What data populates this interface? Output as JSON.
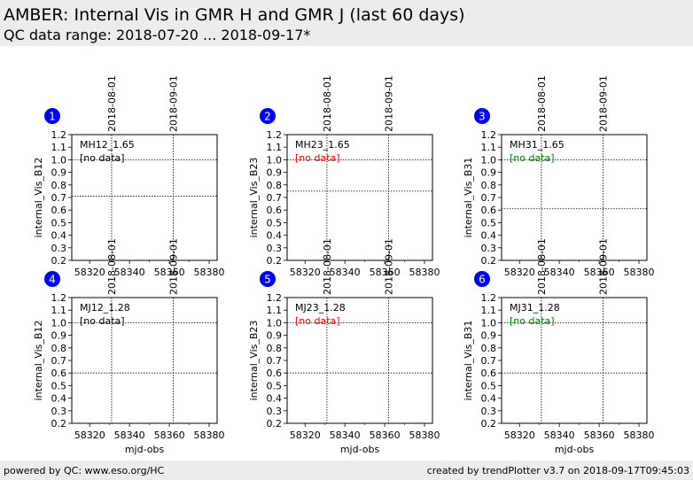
{
  "header": {
    "title": "AMBER: Internal Vis in GMR H and GMR J (last 60 days)",
    "subtitle": "QC data range: 2018-07-20 ... 2018-09-17*"
  },
  "footer": {
    "left": "powered by QC: www.eso.org/HC",
    "right": "created by trendPlotter v3.7 on 2018-09-17T09:45:03"
  },
  "colors": {
    "badge": "#0000ff",
    "no_data_black": "#000000",
    "no_data_red": "#ff0000",
    "no_data_green": "#008000"
  },
  "chart_data": [
    {
      "type": "scatter",
      "badge": "1",
      "label": "MH12_1.65",
      "status": "[no data]",
      "status_color": "#000000",
      "ylabel": "internal_Vis_B12",
      "xlabel": "",
      "xlim": [
        58311,
        58384
      ],
      "ylim": [
        0.2,
        1.2
      ],
      "xticks": [
        58320,
        58340,
        58360,
        58380
      ],
      "yticks": [
        0.2,
        0.3,
        0.4,
        0.5,
        0.6,
        0.7,
        0.8,
        0.9,
        1.0,
        1.1,
        1.2
      ],
      "date_marks": [
        {
          "x": 58331,
          "label": "2018-08-01"
        },
        {
          "x": 58362,
          "label": "2018-09-01"
        }
      ],
      "hlines": [
        1.0,
        0.71
      ],
      "series": []
    },
    {
      "type": "scatter",
      "badge": "2",
      "label": "MH23_1.65",
      "status": "[no data]",
      "status_color": "#ff0000",
      "ylabel": "internal_Vis_B23",
      "xlabel": "",
      "xlim": [
        58311,
        58384
      ],
      "ylim": [
        0.2,
        1.2
      ],
      "xticks": [
        58320,
        58340,
        58360,
        58380
      ],
      "yticks": [
        0.2,
        0.3,
        0.4,
        0.5,
        0.6,
        0.7,
        0.8,
        0.9,
        1.0,
        1.1,
        1.2
      ],
      "date_marks": [
        {
          "x": 58331,
          "label": "2018-08-01"
        },
        {
          "x": 58362,
          "label": "2018-09-01"
        }
      ],
      "hlines": [
        1.0,
        0.75
      ],
      "series": []
    },
    {
      "type": "scatter",
      "badge": "3",
      "label": "MH31_1.65",
      "status": "[no data]",
      "status_color": "#008000",
      "ylabel": "internal_Vis_B31",
      "xlabel": "",
      "xlim": [
        58311,
        58384
      ],
      "ylim": [
        0.2,
        1.2
      ],
      "xticks": [
        58320,
        58340,
        58360,
        58380
      ],
      "yticks": [
        0.2,
        0.3,
        0.4,
        0.5,
        0.6,
        0.7,
        0.8,
        0.9,
        1.0,
        1.1,
        1.2
      ],
      "date_marks": [
        {
          "x": 58331,
          "label": "2018-08-01"
        },
        {
          "x": 58362,
          "label": "2018-09-01"
        }
      ],
      "hlines": [
        1.0,
        0.61
      ],
      "series": []
    },
    {
      "type": "scatter",
      "badge": "4",
      "label": "MJ12_1.28",
      "status": "[no data]",
      "status_color": "#000000",
      "ylabel": "internal_Vis_B12",
      "xlabel": "mjd-obs",
      "xlim": [
        58311,
        58384
      ],
      "ylim": [
        0.2,
        1.2
      ],
      "xticks": [
        58320,
        58340,
        58360,
        58380
      ],
      "yticks": [
        0.2,
        0.3,
        0.4,
        0.5,
        0.6,
        0.7,
        0.8,
        0.9,
        1.0,
        1.1,
        1.2
      ],
      "date_marks": [
        {
          "x": 58331,
          "label": "2018-08-01"
        },
        {
          "x": 58362,
          "label": "2018-09-01"
        }
      ],
      "hlines": [
        1.0,
        0.6
      ],
      "series": []
    },
    {
      "type": "scatter",
      "badge": "5",
      "label": "MJ23_1.28",
      "status": "[no data]",
      "status_color": "#ff0000",
      "ylabel": "internal_Vis_B23",
      "xlabel": "mjd-obs",
      "xlim": [
        58311,
        58384
      ],
      "ylim": [
        0.2,
        1.2
      ],
      "xticks": [
        58320,
        58340,
        58360,
        58380
      ],
      "yticks": [
        0.2,
        0.3,
        0.4,
        0.5,
        0.6,
        0.7,
        0.8,
        0.9,
        1.0,
        1.1,
        1.2
      ],
      "date_marks": [
        {
          "x": 58331,
          "label": "2018-08-01"
        },
        {
          "x": 58362,
          "label": "2018-09-01"
        }
      ],
      "hlines": [
        1.0,
        0.6
      ],
      "series": []
    },
    {
      "type": "scatter",
      "badge": "6",
      "label": "MJ31_1.28",
      "status": "[no data]",
      "status_color": "#008000",
      "ylabel": "internal_Vis_B31",
      "xlabel": "mjd-obs",
      "xlim": [
        58311,
        58384
      ],
      "ylim": [
        0.2,
        1.2
      ],
      "xticks": [
        58320,
        58340,
        58360,
        58380
      ],
      "yticks": [
        0.2,
        0.3,
        0.4,
        0.5,
        0.6,
        0.7,
        0.8,
        0.9,
        1.0,
        1.1,
        1.2
      ],
      "date_marks": [
        {
          "x": 58331,
          "label": "2018-08-01"
        },
        {
          "x": 58362,
          "label": "2018-09-01"
        }
      ],
      "hlines": [
        1.0,
        0.6
      ],
      "series": []
    }
  ]
}
